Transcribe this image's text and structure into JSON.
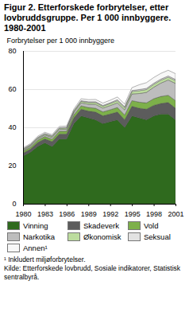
{
  "chart_data": {
    "type": "area",
    "stacked": true,
    "title": "Figur 2. Etterforskede forbrytelser, etter lovbruddsgruppe. Per 1 000 innbyggere. 1980-2001",
    "y_label": "Forbrytelser per 1 000 innbyggere",
    "footnote": "¹ Inkludert miljøforbrytelser.",
    "source": "Kilde: Etterforskede lovbrudd, Sosiale indikatorer, Statistisk sentralbyrå.",
    "x": [
      1980,
      1981,
      1982,
      1983,
      1984,
      1985,
      1986,
      1987,
      1988,
      1989,
      1990,
      1991,
      1992,
      1993,
      1994,
      1995,
      1996,
      1997,
      1998,
      1999,
      2000,
      2001
    ],
    "xlim": [
      1980,
      2001
    ],
    "xticks": [
      1980,
      1983,
      1986,
      1989,
      1992,
      1995,
      1998,
      2001
    ],
    "ylim": [
      0,
      80
    ],
    "yticks": [
      0,
      20,
      40,
      60,
      80
    ],
    "grid": true,
    "series": [
      {
        "name": "Vinning",
        "color": "#2f6a1e",
        "values": [
          25,
          27,
          30,
          32,
          30,
          34,
          34,
          42,
          46,
          45,
          44,
          42,
          43,
          44,
          40,
          46,
          45,
          44,
          46,
          47,
          47,
          44
        ]
      },
      {
        "name": "Skadeverk",
        "color": "#5c5c5c",
        "values": [
          1.5,
          1.5,
          2,
          2,
          2.5,
          2.5,
          2.5,
          3,
          3.5,
          3.5,
          4,
          4,
          4,
          4,
          4,
          5,
          5,
          5.5,
          5.5,
          5.5,
          6,
          6
        ]
      },
      {
        "name": "Vold",
        "color": "#7db04a",
        "values": [
          1,
          1,
          1.2,
          1.2,
          1.3,
          1.4,
          1.5,
          1.6,
          1.8,
          1.9,
          2,
          2.1,
          2.2,
          2.4,
          2.5,
          3,
          3.2,
          3.3,
          3.5,
          3.7,
          3.8,
          4
        ]
      },
      {
        "name": "Narkotika",
        "color": "#bdbdbd",
        "values": [
          0.5,
          0.6,
          0.7,
          0.8,
          0.9,
          1,
          1,
          1.2,
          1.5,
          1.7,
          2,
          2,
          2.2,
          2.4,
          2.6,
          3.5,
          4.5,
          5.5,
          6,
          7,
          8,
          9
        ]
      },
      {
        "name": "Økonomisk",
        "color": "#bcdc9e",
        "values": [
          0.5,
          0.5,
          0.5,
          0.5,
          0.6,
          0.6,
          0.7,
          0.7,
          0.8,
          0.9,
          1,
          1,
          1.1,
          1.2,
          1.2,
          1.3,
          1.5,
          1.5,
          1.5,
          1.5,
          1.5,
          1.5
        ]
      },
      {
        "name": "Seksual",
        "color": "#e2e2e2",
        "values": [
          0.3,
          0.3,
          0.3,
          0.3,
          0.3,
          0.3,
          0.3,
          0.3,
          0.4,
          0.4,
          0.4,
          0.4,
          0.4,
          0.5,
          0.5,
          0.5,
          0.6,
          0.6,
          0.6,
          0.6,
          0.6,
          0.6
        ]
      },
      {
        "name": "Annen¹",
        "color": "#f7f7f7",
        "values": [
          0.5,
          0.5,
          0.6,
          0.6,
          0.6,
          0.7,
          0.7,
          0.8,
          1,
          1.1,
          1.2,
          1.2,
          1.3,
          1.4,
          1.4,
          1.5,
          2.5,
          3,
          3,
          3,
          3,
          3
        ]
      }
    ]
  }
}
